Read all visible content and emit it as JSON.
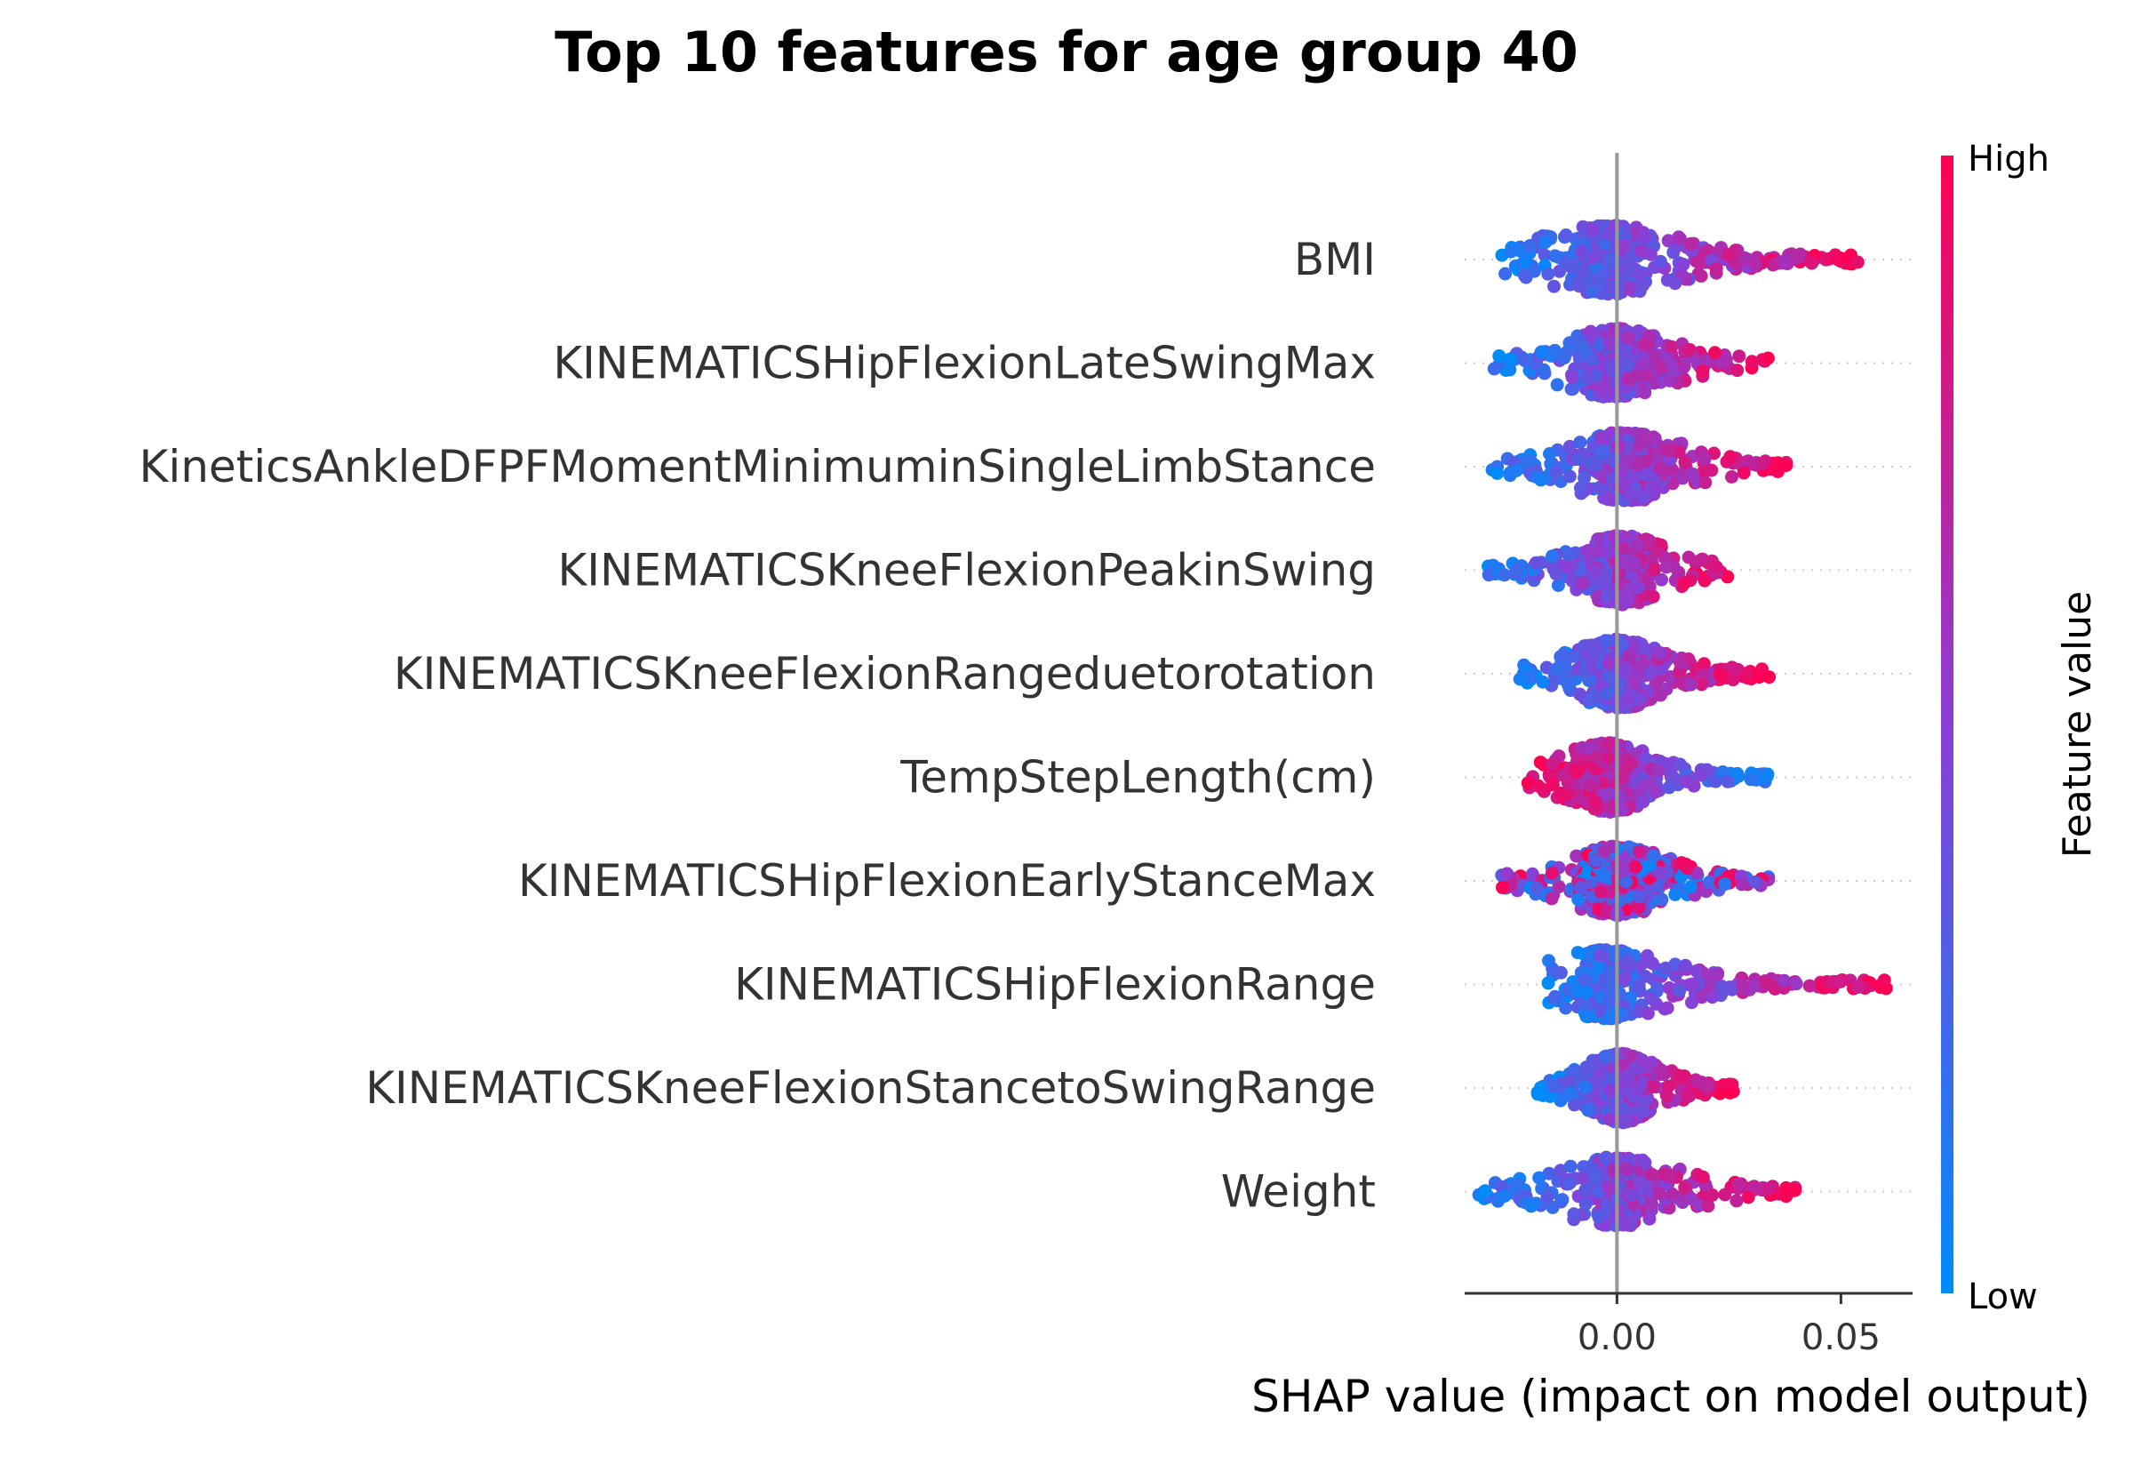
{
  "chart_data": {
    "type": "scatter",
    "subtype": "beeswarm",
    "title": "Top 10 features for age group 40",
    "xlabel": "SHAP value (impact on model output)",
    "xlim": [
      -0.034,
      0.066
    ],
    "xticks": [
      {
        "value": 0.0,
        "label": "0.00"
      },
      {
        "value": 0.05,
        "label": "0.05"
      }
    ],
    "zero_line": true,
    "grid": false,
    "colorbar": {
      "title": "Feature value",
      "high_label": "High",
      "low_label": "Low",
      "high_color": "#ff0052",
      "low_color": "#008bfb",
      "placement": "right"
    },
    "features": [
      {
        "name": "BMI",
        "min": -0.027,
        "max": 0.055,
        "core": [
          -0.01,
          0.006
        ],
        "trend": "positive"
      },
      {
        "name": "KINEMATICSHipFlexionLateSwingMax",
        "min": -0.028,
        "max": 0.036,
        "core": [
          -0.008,
          0.008
        ],
        "trend": "positive"
      },
      {
        "name": "KineticsAnkleDFPFMomentMinimuminSingleLimbStance",
        "min": -0.028,
        "max": 0.038,
        "core": [
          -0.006,
          0.01
        ],
        "trend": "positive"
      },
      {
        "name": "KINEMATICSKneeFlexionPeakinSwing",
        "min": -0.029,
        "max": 0.026,
        "core": [
          -0.006,
          0.008
        ],
        "trend": "positive"
      },
      {
        "name": "KINEMATICSKneeFlexionRangeduetorotation",
        "min": -0.022,
        "max": 0.034,
        "core": [
          -0.008,
          0.008
        ],
        "trend": "positive"
      },
      {
        "name": "TempStepLength(cm)",
        "min": -0.02,
        "max": 0.034,
        "core": [
          -0.01,
          0.006
        ],
        "trend": "negative"
      },
      {
        "name": "KINEMATICSHipFlexionEarlyStanceMax",
        "min": -0.026,
        "max": 0.034,
        "core": [
          -0.008,
          0.008
        ],
        "trend": "mixed"
      },
      {
        "name": "KINEMATICSHipFlexionRange",
        "min": -0.017,
        "max": 0.062,
        "core": [
          -0.008,
          0.002
        ],
        "trend": "positive"
      },
      {
        "name": "KINEMATICSKneeFlexionStancetoSwingRange",
        "min": -0.018,
        "max": 0.026,
        "core": [
          -0.006,
          0.008
        ],
        "trend": "positive"
      },
      {
        "name": "Weight",
        "min": -0.031,
        "max": 0.04,
        "core": [
          -0.006,
          0.006
        ],
        "trend": "positive"
      }
    ]
  }
}
